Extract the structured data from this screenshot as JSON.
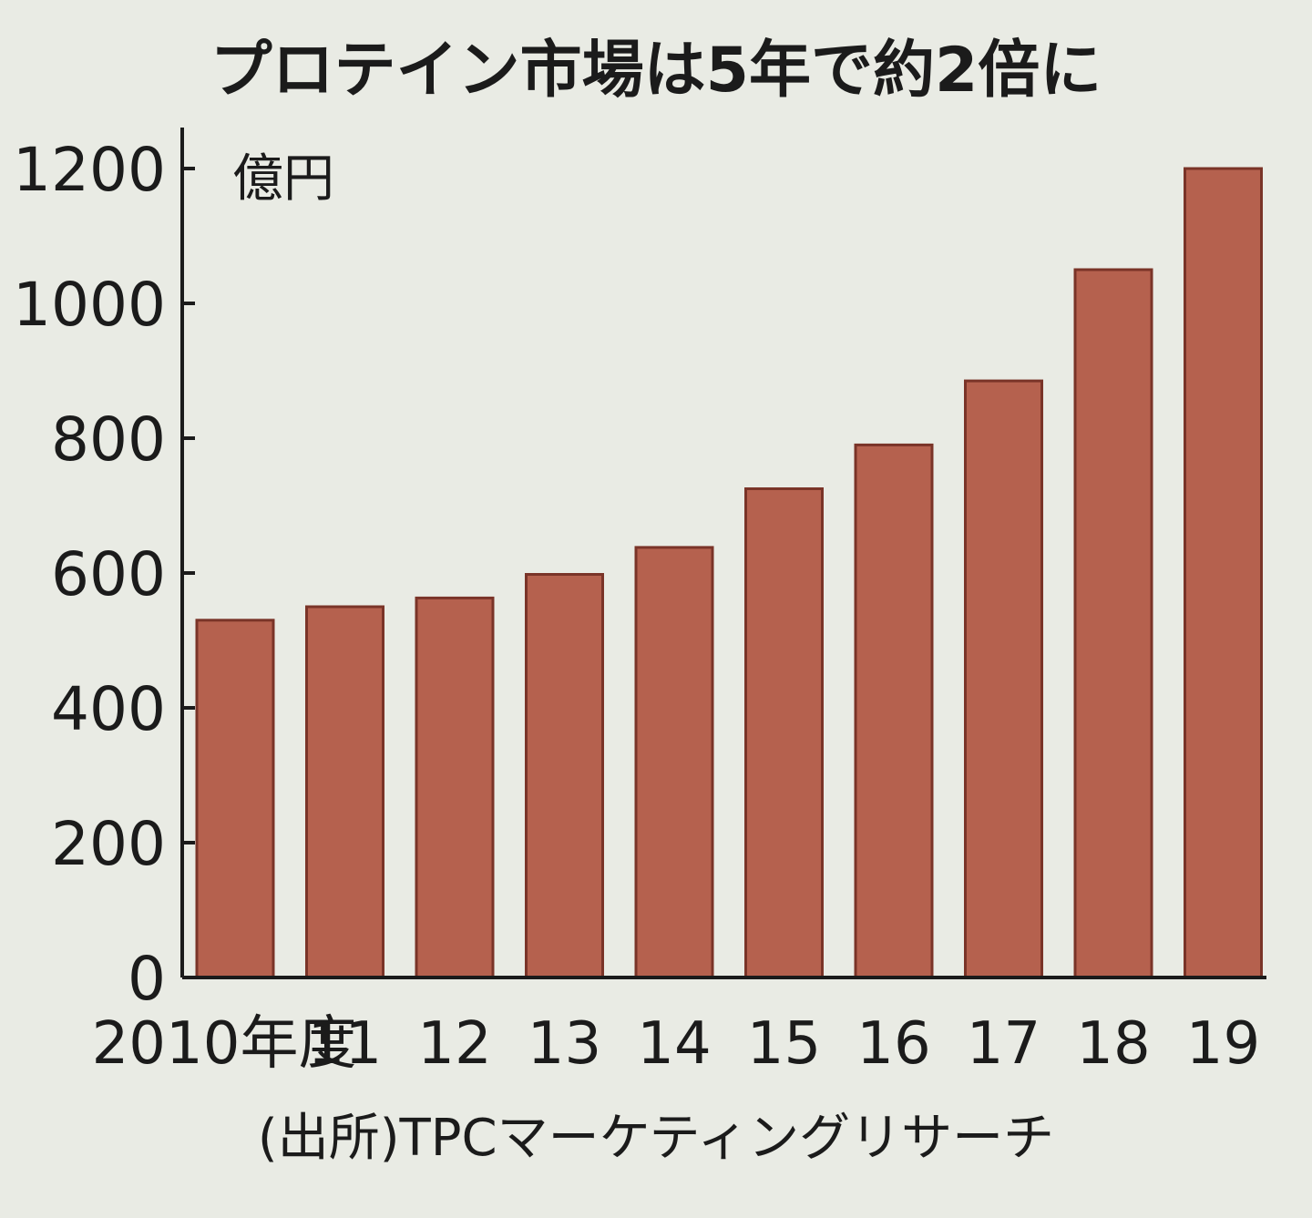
{
  "chart_data": {
    "type": "bar",
    "title": "プロテイン市場は5年で約2倍に",
    "unit_label": "億円",
    "categories": [
      "2010年度",
      "11",
      "12",
      "13",
      "14",
      "15",
      "16",
      "17",
      "18",
      "19"
    ],
    "values": [
      530,
      550,
      563,
      598,
      638,
      725,
      790,
      885,
      1050,
      1200
    ],
    "yticks": [
      "0",
      "200",
      "400",
      "600",
      "800",
      "1000",
      "1200"
    ],
    "ylim": [
      0,
      1200
    ],
    "grid": false,
    "source": "(出所)TPCマーケティングリサーチ"
  },
  "colors": {
    "bar": "#b5614e",
    "bar_edge": "#7a3428",
    "axis": "#1b1b1b",
    "background": "#e9ebe4"
  }
}
